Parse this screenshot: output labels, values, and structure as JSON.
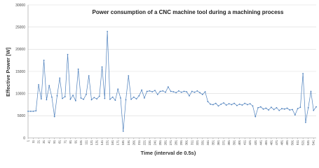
{
  "chart_data": {
    "type": "line",
    "title": "Power consumption of a CNC machine tool during a machining process",
    "x_label": "Time (interval de 0.5s)",
    "y_label": "Effective Power [W]",
    "color": "#4f81bd",
    "grid": true,
    "xlim": [
      1,
      546
    ],
    "ylim": [
      0,
      30000
    ],
    "yticks": [
      0,
      5000,
      10000,
      15000,
      20000,
      25000,
      30000
    ],
    "xticks": [
      1,
      11,
      21,
      31,
      41,
      51,
      61,
      71,
      81,
      91,
      101,
      111,
      121,
      131,
      141,
      151,
      161,
      171,
      181,
      191,
      201,
      211,
      221,
      231,
      241,
      251,
      261,
      271,
      281,
      291,
      301,
      311,
      321,
      331,
      341,
      351,
      361,
      371,
      381,
      391,
      401,
      411,
      421,
      431,
      441,
      451,
      461,
      471,
      481,
      491,
      501,
      511,
      521,
      531,
      541
    ],
    "x": [
      1,
      6,
      11,
      16,
      21,
      26,
      31,
      36,
      41,
      46,
      51,
      56,
      61,
      66,
      71,
      76,
      81,
      86,
      91,
      96,
      101,
      106,
      111,
      116,
      121,
      126,
      131,
      136,
      141,
      146,
      151,
      156,
      161,
      166,
      171,
      176,
      181,
      186,
      191,
      196,
      201,
      206,
      211,
      216,
      221,
      226,
      231,
      236,
      241,
      246,
      251,
      256,
      261,
      266,
      271,
      276,
      281,
      286,
      291,
      296,
      301,
      306,
      311,
      316,
      321,
      326,
      331,
      336,
      341,
      346,
      351,
      356,
      361,
      366,
      371,
      376,
      381,
      386,
      391,
      396,
      401,
      406,
      411,
      416,
      421,
      426,
      431,
      436,
      441,
      446,
      451,
      456,
      461,
      466,
      471,
      476,
      481,
      486,
      491,
      496,
      501,
      506,
      511,
      516,
      521,
      526,
      531,
      536,
      541,
      546
    ],
    "values": [
      6000,
      6000,
      6000,
      6100,
      12000,
      8800,
      17500,
      8600,
      11800,
      9200,
      4800,
      9500,
      13500,
      8900,
      9300,
      18800,
      8700,
      9600,
      8400,
      15500,
      9000,
      8700,
      9800,
      14000,
      8600,
      9100,
      8800,
      9400,
      16000,
      8900,
      24000,
      8700,
      9200,
      8500,
      11000,
      9000,
      1500,
      8600,
      14000,
      8700,
      9200,
      8800,
      9500,
      10800,
      9000,
      10500,
      10600,
      10400,
      10700,
      9800,
      10500,
      10600,
      10300,
      11500,
      10500,
      10400,
      10200,
      10600,
      10300,
      10500,
      10400,
      9500,
      10500,
      10300,
      10600,
      10200,
      9800,
      10400,
      8200,
      7600,
      7500,
      7800,
      7200,
      7600,
      7900,
      7400,
      7700,
      7500,
      7800,
      7300,
      7600,
      7400,
      7800,
      7500,
      7700,
      7200,
      4800,
      6800,
      7000,
      6500,
      6700,
      6300,
      6900,
      6400,
      6800,
      6200,
      6600,
      6500,
      6700,
      6300,
      6400,
      5200,
      6600,
      6900,
      14500,
      3500,
      6800,
      10500,
      6200,
      7000
    ]
  }
}
